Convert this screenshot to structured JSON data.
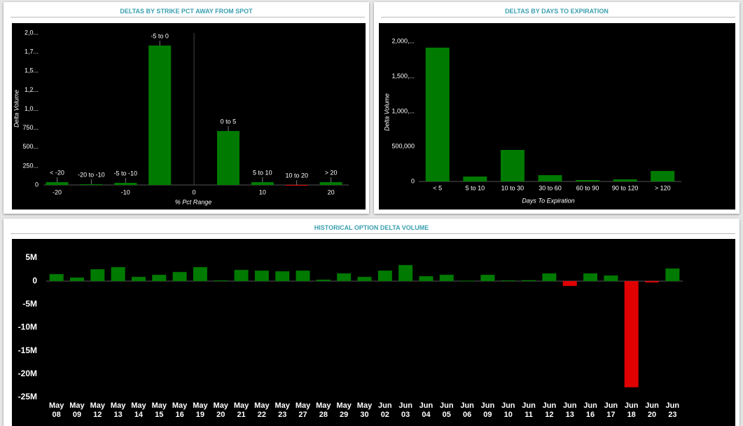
{
  "chart_data": [
    {
      "type": "bar",
      "title": "DELTAS BY STRIKE PCT AWAY FROM SPOT",
      "ylabel": "Delta Volume",
      "xlabel": "% Pct Range",
      "x": [
        -20,
        -15,
        -10,
        -5,
        5,
        10,
        15,
        20
      ],
      "bar_labels": [
        "< -20",
        "-20 to -10",
        "-5 to -10",
        "-5 to 0",
        "0 to 5",
        "5 to 10",
        "10 to 20",
        "> 20"
      ],
      "values": [
        37000,
        10000,
        28000,
        1834000,
        710000,
        37000,
        -6000,
        37000
      ],
      "color": "#007a00",
      "negative_color": "#e00000",
      "xlim": [
        -22,
        22.6
      ],
      "xticks": [
        -20,
        -10,
        0,
        10,
        20
      ],
      "ylim": [
        0,
        2000000
      ],
      "yticks": [
        0,
        {
          "value": 250000,
          "label": "250..."
        },
        {
          "value": 500000,
          "label": "500..."
        },
        {
          "value": 750000,
          "label": "750..."
        },
        {
          "value": 1000000,
          "label": "1,0..."
        },
        {
          "value": 1250000,
          "label": "1,2..."
        },
        {
          "value": 1500000,
          "label": "1,5..."
        },
        {
          "value": 1750000,
          "label": "1,7..."
        },
        {
          "value": 2000000,
          "label": "2,0..."
        }
      ]
    },
    {
      "type": "bar",
      "title": "DELTAS BY DAYS TO EXPIRATION",
      "ylabel": "Delta Volume",
      "xlabel": "Days To Expiration",
      "categories": [
        "< 5",
        "5 to 10",
        "10 to 30",
        "30 to 60",
        "60 to 90",
        "90 to 120",
        "> 120"
      ],
      "values": [
        1910000,
        70000,
        450000,
        90000,
        20000,
        30000,
        150000
      ],
      "color": "#007a00",
      "negative_color": "#e00000",
      "ylim": [
        0,
        2000000
      ],
      "yticks": [
        0,
        {
          "value": 500000,
          "label": "500,000"
        },
        {
          "value": 1000000,
          "label": "1,000,..."
        },
        {
          "value": 1500000,
          "label": "1,500,..."
        },
        {
          "value": 2000000,
          "label": "2,000,..."
        }
      ]
    },
    {
      "type": "bar",
      "title": "HISTORICAL OPTION DELTA VOLUME",
      "categories": [
        "May 08",
        "May 09",
        "May 12",
        "May 13",
        "May 14",
        "May 15",
        "May 16",
        "May 19",
        "May 20",
        "May 21",
        "May 22",
        "May 23",
        "May 27",
        "May 28",
        "May 29",
        "May 30",
        "Jun 02",
        "Jun 03",
        "Jun 04",
        "Jun 05",
        "Jun 06",
        "Jun 09",
        "Jun 10",
        "Jun 11",
        "Jun 12",
        "Jun 13",
        "Jun 16",
        "Jun 17",
        "Jun 18",
        "Jun 20",
        "Jun 23"
      ],
      "values": [
        1.5,
        0.75,
        2.55,
        3.0,
        0.9,
        1.35,
        1.95,
        3.0,
        0.15,
        2.4,
        2.25,
        2.1,
        2.25,
        0.3,
        1.65,
        0.9,
        2.25,
        3.45,
        1.05,
        1.35,
        0.1,
        1.35,
        0.15,
        0.2,
        1.65,
        -1.05,
        1.65,
        1.2,
        -22.85,
        -0.3,
        2.7
      ],
      "color": "#007a00",
      "negative_color": "#e00000",
      "ylim": [
        -25,
        5
      ],
      "yticks": [
        {
          "value": 5,
          "label": "5M"
        },
        0,
        {
          "value": -5,
          "label": "-5M"
        },
        {
          "value": -10,
          "label": "-10M"
        },
        {
          "value": -15,
          "label": "-15M"
        },
        {
          "value": -20,
          "label": "-20M"
        },
        {
          "value": -25,
          "label": "-25M"
        }
      ]
    }
  ]
}
